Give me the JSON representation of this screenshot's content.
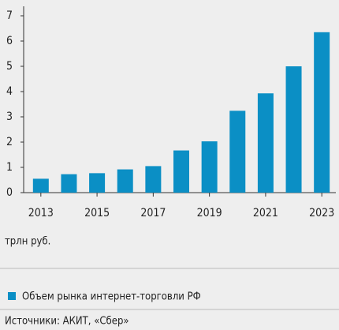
{
  "chart_data": {
    "type": "bar",
    "categories": [
      "2013",
      null,
      "2015",
      null,
      "2017",
      null,
      "2019",
      null,
      "2021",
      null,
      "2023"
    ],
    "series": [
      {
        "name": "Объем рынка интернет-торговли РФ",
        "color": "#0b8fc5",
        "values": [
          0.55,
          0.73,
          0.77,
          0.92,
          1.05,
          1.67,
          2.03,
          3.24,
          3.93,
          5.0,
          6.35
        ]
      }
    ],
    "ylim": [
      0,
      7
    ],
    "yticks": [
      0,
      1,
      2,
      3,
      4,
      5,
      6,
      7
    ],
    "unit_label": "трлн руб.",
    "source": "Источники: АКИТ, «Сбер»"
  }
}
